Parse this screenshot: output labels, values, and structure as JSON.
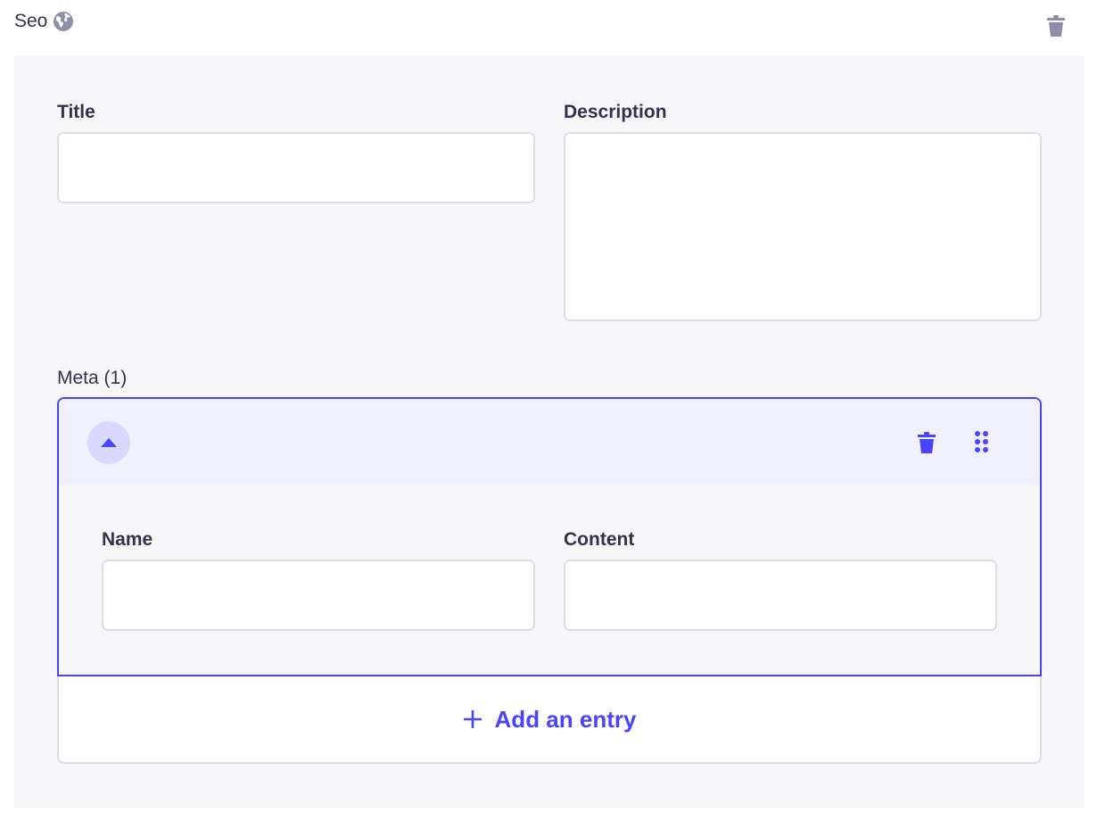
{
  "header": {
    "title": "Seo",
    "icon": "globe-icon"
  },
  "fields": {
    "title": {
      "label": "Title",
      "value": ""
    },
    "description": {
      "label": "Description",
      "value": ""
    }
  },
  "meta": {
    "label": "Meta (1)",
    "entry": {
      "expanded": true,
      "name": {
        "label": "Name",
        "value": ""
      },
      "content": {
        "label": "Content",
        "value": ""
      }
    },
    "add_label": "Add an entry"
  },
  "colors": {
    "accent": "#4945ff",
    "panel": "#f6f6f9",
    "border": "#dcdce4",
    "text": "#32324d",
    "icon_gray": "#8e8ea9"
  }
}
